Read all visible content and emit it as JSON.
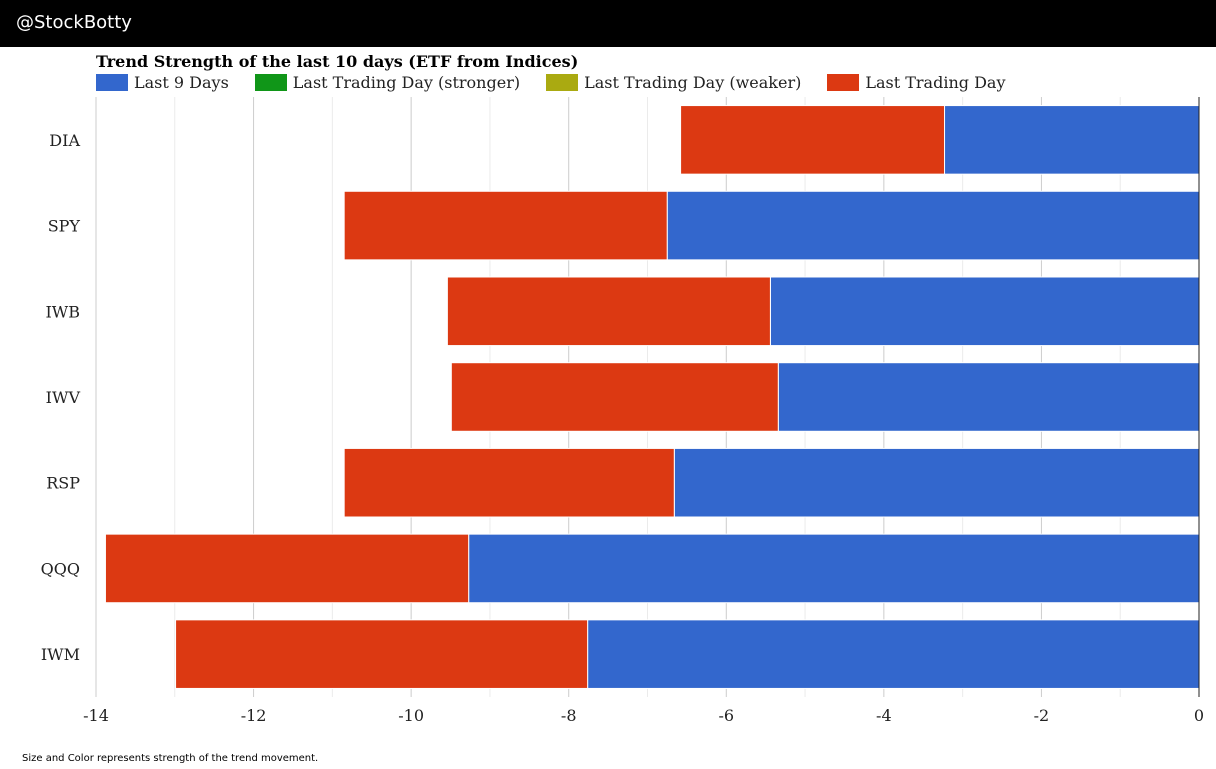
{
  "header": {
    "handle": "@StockBotty"
  },
  "footnote": "Size and Color represents strength of the trend movement.",
  "colors": {
    "last_9_days": "#3367cd",
    "stronger": "#109618",
    "weaker": "#aaaa11",
    "last_trading_day": "#dc3912",
    "grid_major": "#cccccc",
    "grid_minor": "#ebebeb"
  },
  "chart_data": {
    "type": "bar",
    "orientation": "horizontal",
    "stacked": true,
    "title": "Trend Strength of the last 10 days (ETF from Indices)",
    "legend": [
      {
        "name": "Last 9 Days",
        "color": "#3367cd"
      },
      {
        "name": "Last Trading Day (stronger)",
        "color": "#109618"
      },
      {
        "name": "Last Trading Day (weaker)",
        "color": "#aaaa11"
      },
      {
        "name": "Last Trading Day",
        "color": "#dc3912"
      }
    ],
    "legend_position": "top-left",
    "categories": [
      "DIA",
      "SPY",
      "IWB",
      "IWV",
      "RSP",
      "QQQ",
      "IWM"
    ],
    "series": [
      {
        "name": "Last 9 Days",
        "color": "#3367cd",
        "values": [
          -3.23,
          -6.75,
          -5.44,
          -5.34,
          -6.66,
          -9.27,
          -7.76
        ]
      },
      {
        "name": "Last Trading Day",
        "color": "#dc3912",
        "values": [
          -3.35,
          -4.1,
          -4.1,
          -4.15,
          -4.19,
          -4.61,
          -5.23
        ]
      }
    ],
    "xlim": [
      -14,
      0
    ],
    "xticks": [
      -14,
      -12,
      -10,
      -8,
      -6,
      -4,
      -2,
      0
    ],
    "xlabel": "",
    "ylabel": "",
    "grid": true
  }
}
